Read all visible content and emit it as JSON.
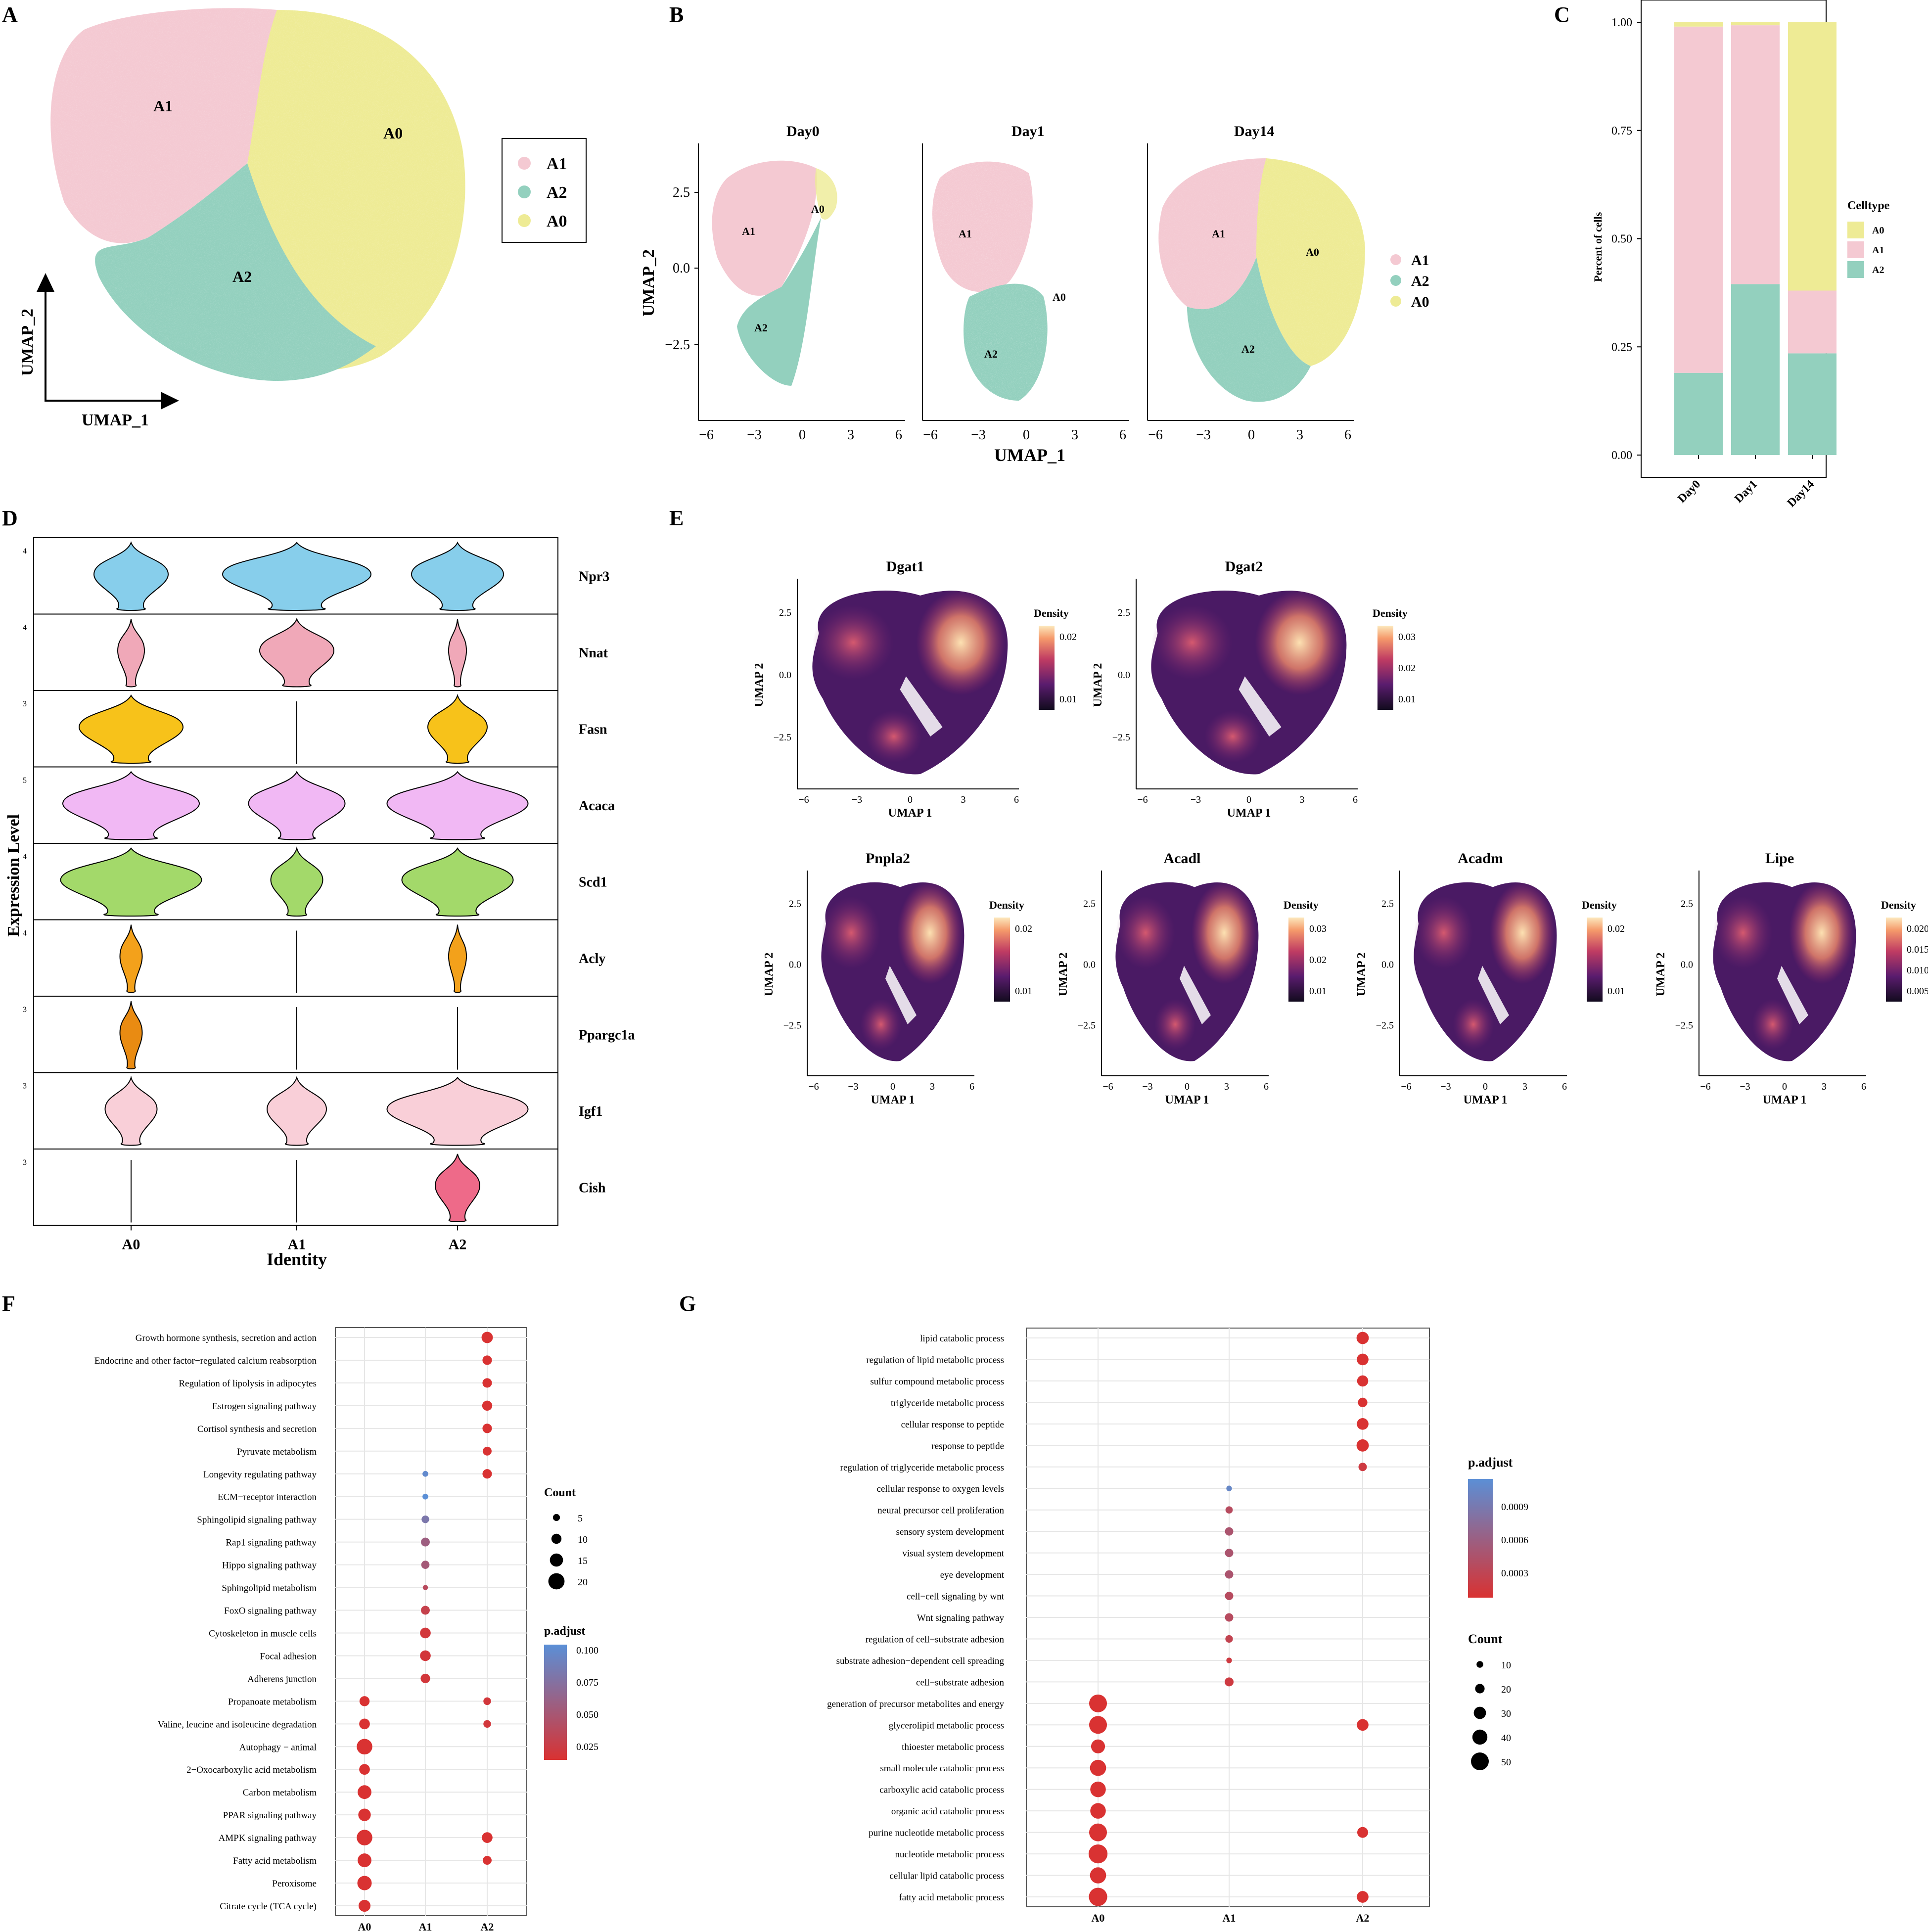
{
  "colors": {
    "A0": "#eeeb95",
    "A1": "#f4c9d2",
    "A2": "#93d0be",
    "padj_high": "#d93232",
    "padj_low": "#5b8fd6",
    "density_low": "#120b1e",
    "density_mid": "#b0306a",
    "density_high": "#fce1b2"
  },
  "panel_labels": {
    "A": "A",
    "B": "B",
    "C": "C",
    "D": "D",
    "E": "E",
    "F": "F",
    "G": "G"
  },
  "panel_a": {
    "xlabel": "UMAP_1",
    "ylabel": "UMAP_2",
    "clusters": [
      "A1",
      "A0",
      "A2"
    ],
    "legend": [
      "A1",
      "A2",
      "A0"
    ]
  },
  "panel_b": {
    "facets": [
      "Day0",
      "Day1",
      "Day14"
    ],
    "xlabel": "UMAP_1",
    "ylabel": "UMAP_2",
    "xticks": [
      "−6",
      "−3",
      "0",
      "3",
      "6"
    ],
    "yticks": [
      "2.5",
      "0.0",
      "−2.5"
    ],
    "legend": [
      "A1",
      "A2",
      "A0"
    ],
    "cluster_labels": [
      "A1",
      "A0",
      "A2"
    ]
  },
  "chart_data": [
    {
      "id": "panel_c",
      "type": "bar",
      "stacked": true,
      "categories": [
        "Day0",
        "Day1",
        "Day14"
      ],
      "series": [
        {
          "name": "A2",
          "values": [
            0.19,
            0.395,
            0.235
          ]
        },
        {
          "name": "A1",
          "values": [
            0.8,
            0.598,
            0.145
          ]
        },
        {
          "name": "A0",
          "values": [
            0.01,
            0.007,
            0.62
          ]
        }
      ],
      "ylabel": "Percent of cells",
      "yticks": [
        "0.00",
        "0.25",
        "0.50",
        "0.75",
        "1.00"
      ],
      "ylim": [
        0,
        1
      ],
      "legend_title": "Celltype",
      "legend_items": [
        "A0",
        "A1",
        "A2"
      ]
    },
    {
      "id": "panel_d",
      "type": "violin",
      "identities": [
        "A0",
        "A1",
        "A2"
      ],
      "xlabel": "Identity",
      "ylabel": "Expression Level",
      "genes": [
        {
          "name": "Npr3",
          "ytick": "4",
          "color": "#87ceeb",
          "widths": [
            0.5,
            1.0,
            0.62
          ]
        },
        {
          "name": "Nnat",
          "ytick": "4",
          "color": "#f0a8b8",
          "widths": [
            0.18,
            0.5,
            0.12
          ]
        },
        {
          "name": "Fasn",
          "ytick": "3",
          "color": "#f7c21a",
          "widths": [
            0.7,
            0.0,
            0.4
          ]
        },
        {
          "name": "Acaca",
          "ytick": "5",
          "color": "#f1b8f4",
          "widths": [
            0.92,
            0.65,
            0.95
          ]
        },
        {
          "name": "Scd1",
          "ytick": "4",
          "color": "#a3d96a",
          "widths": [
            0.95,
            0.35,
            0.75
          ]
        },
        {
          "name": "Acly",
          "ytick": "4",
          "color": "#f3a11b",
          "widths": [
            0.15,
            0.0,
            0.12
          ]
        },
        {
          "name": "Ppargc1a",
          "ytick": "3",
          "color": "#e98b12",
          "widths": [
            0.15,
            0.0,
            0.0
          ]
        },
        {
          "name": "Igf1",
          "ytick": "3",
          "color": "#f9cfd8",
          "widths": [
            0.35,
            0.4,
            0.95
          ]
        },
        {
          "name": "Cish",
          "ytick": "3",
          "color": "#ee6a89",
          "widths": [
            0.0,
            0.0,
            0.3
          ]
        }
      ]
    },
    {
      "id": "panel_e",
      "type": "density",
      "xlabel": "UMAP 1",
      "ylabel": "UMAP 2",
      "xticks": [
        "−6",
        "−3",
        "0",
        "3",
        "6"
      ],
      "yticks": [
        "2.5",
        "0.0",
        "−2.5"
      ],
      "legend_title": "Density",
      "plots": [
        {
          "title": "Dgat1",
          "ticks": [
            "0.02",
            "0.01"
          ]
        },
        {
          "title": "Dgat2",
          "ticks": [
            "0.03",
            "0.02",
            "0.01"
          ]
        },
        {
          "title": "Pnpla2",
          "ticks": [
            "0.02",
            "0.01"
          ]
        },
        {
          "title": "Acadl",
          "ticks": [
            "0.03",
            "0.02",
            "0.01"
          ]
        },
        {
          "title": "Acadm",
          "ticks": [
            "0.02",
            "0.01"
          ]
        },
        {
          "title": "Lipe",
          "ticks": [
            "0.020",
            "0.015",
            "0.010",
            "0.005"
          ]
        }
      ]
    },
    {
      "id": "panel_f",
      "type": "scatter",
      "subtype": "dotplot",
      "x": [
        "A0",
        "A1",
        "A2"
      ],
      "terms": [
        "Growth hormone synthesis, secretion and action",
        "Endocrine and other factor−regulated calcium reabsorption",
        "Regulation of lipolysis in adipocytes",
        "Estrogen signaling pathway",
        "Cortisol synthesis and secretion",
        "Pyruvate metabolism",
        "Longevity regulating pathway",
        "ECM−receptor interaction",
        "Sphingolipid signaling pathway",
        "Rap1 signaling pathway",
        "Hippo signaling pathway",
        "Sphingolipid metabolism",
        "FoxO signaling pathway",
        "Cytoskeleton in muscle cells",
        "Focal adhesion",
        "Adherens junction",
        "Propanoate metabolism",
        "Valine, leucine and isoleucine degradation",
        "Autophagy − animal",
        "2−Oxocarboxylic acid metabolism",
        "Carbon metabolism",
        "PPAR signaling pathway",
        "AMPK signaling pathway",
        "Fatty acid metabolism",
        "Peroxisome",
        "Citrate cycle (TCA cycle)"
      ],
      "points": [
        {
          "term": 0,
          "x": 2,
          "count": 12,
          "padj": 0.005
        },
        {
          "term": 1,
          "x": 2,
          "count": 9,
          "padj": 0.005
        },
        {
          "term": 2,
          "x": 2,
          "count": 9,
          "padj": 0.005
        },
        {
          "term": 3,
          "x": 2,
          "count": 10,
          "padj": 0.005
        },
        {
          "term": 4,
          "x": 2,
          "count": 9,
          "padj": 0.005
        },
        {
          "term": 5,
          "x": 2,
          "count": 8,
          "padj": 0.005
        },
        {
          "term": 6,
          "x": 2,
          "count": 9,
          "padj": 0.005
        },
        {
          "term": 6,
          "x": 1,
          "count": 3,
          "padj": 0.095
        },
        {
          "term": 7,
          "x": 1,
          "count": 3,
          "padj": 0.1
        },
        {
          "term": 8,
          "x": 1,
          "count": 6,
          "padj": 0.075
        },
        {
          "term": 9,
          "x": 1,
          "count": 8,
          "padj": 0.05
        },
        {
          "term": 10,
          "x": 1,
          "count": 7,
          "padj": 0.045
        },
        {
          "term": 11,
          "x": 1,
          "count": 2,
          "padj": 0.03
        },
        {
          "term": 12,
          "x": 1,
          "count": 8,
          "padj": 0.02
        },
        {
          "term": 13,
          "x": 1,
          "count": 11,
          "padj": 0.01
        },
        {
          "term": 14,
          "x": 1,
          "count": 11,
          "padj": 0.01
        },
        {
          "term": 15,
          "x": 1,
          "count": 9,
          "padj": 0.01
        },
        {
          "term": 16,
          "x": 0,
          "count": 10,
          "padj": 0.005
        },
        {
          "term": 16,
          "x": 2,
          "count": 6,
          "padj": 0.01
        },
        {
          "term": 17,
          "x": 0,
          "count": 11,
          "padj": 0.005
        },
        {
          "term": 17,
          "x": 2,
          "count": 6,
          "padj": 0.01
        },
        {
          "term": 18,
          "x": 0,
          "count": 19,
          "padj": 0.005
        },
        {
          "term": 19,
          "x": 0,
          "count": 11,
          "padj": 0.005
        },
        {
          "term": 20,
          "x": 0,
          "count": 16,
          "padj": 0.005
        },
        {
          "term": 21,
          "x": 0,
          "count": 14,
          "padj": 0.005
        },
        {
          "term": 22,
          "x": 0,
          "count": 19,
          "padj": 0.005
        },
        {
          "term": 22,
          "x": 2,
          "count": 11,
          "padj": 0.005
        },
        {
          "term": 23,
          "x": 0,
          "count": 16,
          "padj": 0.005
        },
        {
          "term": 23,
          "x": 2,
          "count": 8,
          "padj": 0.005
        },
        {
          "term": 24,
          "x": 0,
          "count": 17,
          "padj": 0.005
        },
        {
          "term": 25,
          "x": 0,
          "count": 13,
          "padj": 0.005
        }
      ],
      "count_legend_title": "Count",
      "count_legend": [
        5,
        10,
        15,
        20
      ],
      "padj_legend_title": "p.adjust",
      "padj_ticks": [
        "0.100",
        "0.075",
        "0.050",
        "0.025"
      ],
      "padj_range": [
        0.005,
        0.1
      ]
    },
    {
      "id": "panel_g",
      "type": "scatter",
      "subtype": "dotplot",
      "x": [
        "A0",
        "A1",
        "A2"
      ],
      "terms": [
        "lipid catabolic process",
        "regulation of lipid metabolic process",
        "sulfur compound metabolic process",
        "triglyceride metabolic process",
        "cellular response to peptide",
        "response to peptide",
        "regulation of triglyceride metabolic process",
        "cellular response to oxygen levels",
        "neural precursor cell proliferation",
        "sensory system development",
        "visual system development",
        "eye development",
        "cell−cell signaling by wnt",
        "Wnt signaling pathway",
        "regulation of cell−substrate adhesion",
        "substrate adhesion−dependent cell spreading",
        "cell−substrate adhesion",
        "generation of precursor metabolites and energy",
        "glycerolipid metabolic process",
        "thioester metabolic process",
        "small molecule catabolic process",
        "carboxylic acid catabolic process",
        "organic acid catabolic process",
        "purine nucleotide metabolic process",
        "nucleotide metabolic process",
        "cellular lipid catabolic process",
        "fatty acid metabolic process"
      ],
      "points": [
        {
          "term": 0,
          "x": 2,
          "count": 30,
          "padj": 0.0001
        },
        {
          "term": 1,
          "x": 2,
          "count": 28,
          "padj": 0.0001
        },
        {
          "term": 2,
          "x": 2,
          "count": 26,
          "padj": 0.0001
        },
        {
          "term": 3,
          "x": 2,
          "count": 20,
          "padj": 0.0001
        },
        {
          "term": 4,
          "x": 2,
          "count": 28,
          "padj": 0.0001
        },
        {
          "term": 5,
          "x": 2,
          "count": 30,
          "padj": 0.0001
        },
        {
          "term": 6,
          "x": 2,
          "count": 16,
          "padj": 0.0002
        },
        {
          "term": 7,
          "x": 1,
          "count": 6,
          "padj": 0.0011
        },
        {
          "term": 8,
          "x": 1,
          "count": 12,
          "padj": 0.0004
        },
        {
          "term": 9,
          "x": 1,
          "count": 16,
          "padj": 0.0005
        },
        {
          "term": 10,
          "x": 1,
          "count": 16,
          "padj": 0.0005
        },
        {
          "term": 11,
          "x": 1,
          "count": 16,
          "padj": 0.0005
        },
        {
          "term": 12,
          "x": 1,
          "count": 16,
          "padj": 0.0004
        },
        {
          "term": 13,
          "x": 1,
          "count": 16,
          "padj": 0.0004
        },
        {
          "term": 14,
          "x": 1,
          "count": 13,
          "padj": 0.0003
        },
        {
          "term": 15,
          "x": 1,
          "count": 6,
          "padj": 0.0002
        },
        {
          "term": 16,
          "x": 1,
          "count": 18,
          "padj": 0.0002
        },
        {
          "term": 17,
          "x": 0,
          "count": 50,
          "padj": 0.0001
        },
        {
          "term": 18,
          "x": 0,
          "count": 50,
          "padj": 0.0001
        },
        {
          "term": 18,
          "x": 2,
          "count": 28,
          "padj": 0.0001
        },
        {
          "term": 19,
          "x": 0,
          "count": 36,
          "padj": 0.0001
        },
        {
          "term": 20,
          "x": 0,
          "count": 44,
          "padj": 0.0001
        },
        {
          "term": 21,
          "x": 0,
          "count": 42,
          "padj": 0.0001
        },
        {
          "term": 22,
          "x": 0,
          "count": 42,
          "padj": 0.0001
        },
        {
          "term": 23,
          "x": 0,
          "count": 50,
          "padj": 0.0001
        },
        {
          "term": 23,
          "x": 2,
          "count": 25,
          "padj": 0.0001
        },
        {
          "term": 24,
          "x": 0,
          "count": 54,
          "padj": 0.0001
        },
        {
          "term": 25,
          "x": 0,
          "count": 44,
          "padj": 0.0001
        },
        {
          "term": 26,
          "x": 0,
          "count": 52,
          "padj": 0.0001
        },
        {
          "term": 26,
          "x": 2,
          "count": 28,
          "padj": 0.0001
        }
      ],
      "padj_legend_title": "p.adjust",
      "padj_ticks": [
        "0.0009",
        "0.0006",
        "0.0003"
      ],
      "padj_range": [
        0.0001,
        0.0012
      ],
      "count_legend_title": "Count",
      "count_legend": [
        10,
        20,
        30,
        40,
        50
      ]
    }
  ]
}
